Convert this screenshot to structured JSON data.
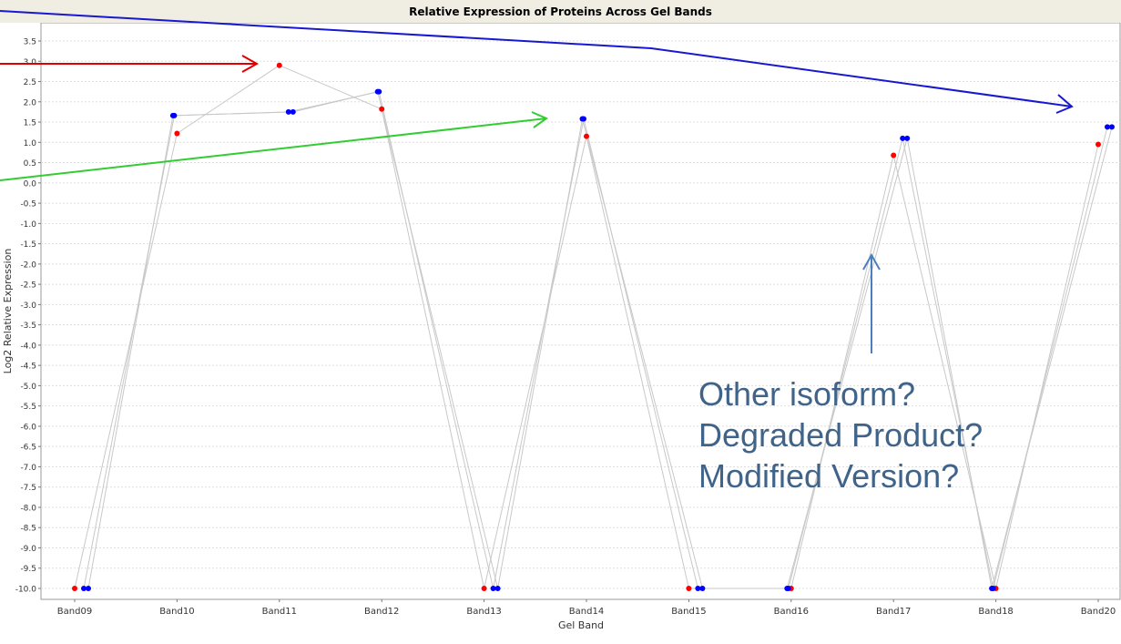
{
  "chart_data": {
    "type": "scatter",
    "title": "Relative Expression of Proteins Across Gel Bands",
    "xlabel": "Gel Band",
    "ylabel": "Log2 Relative Expression",
    "categories": [
      "Band09",
      "Band10",
      "Band11",
      "Band12",
      "Band13",
      "Band14",
      "Band15",
      "Band16",
      "Band17",
      "Band18",
      "Band20"
    ],
    "ylim": [
      -10.25,
      3.75
    ],
    "yticks": [
      "3.5",
      "3.0",
      "2.5",
      "2.0",
      "1.5",
      "1.0",
      "0.5",
      "0.0",
      "-0.5",
      "-1.0",
      "-1.5",
      "-2.0",
      "-2.5",
      "-3.0",
      "-3.5",
      "-4.0",
      "-4.5",
      "-5.0",
      "-5.5",
      "-6.0",
      "-6.5",
      "-7.0",
      "-7.5",
      "-8.0",
      "-8.5",
      "-9.0",
      "-9.5",
      "-10.0"
    ],
    "grid": true,
    "colors": {
      "red_points": "#ff0000",
      "blue_points": "#0000ff",
      "series_lines": "#c8c8c8"
    },
    "series": [
      {
        "color": "red",
        "x": [
          0.0,
          1.0,
          2.0,
          3.0,
          4.0,
          5.0,
          6.0,
          7.0,
          8.0,
          9.0,
          10.0
        ],
        "values": [
          -10.0,
          1.22,
          2.9,
          1.82,
          -10.0,
          1.15,
          -10.0,
          -10.0,
          0.68,
          -10.0,
          0.95
        ]
      },
      {
        "color": "blue",
        "x": [
          0.0,
          1.0,
          2.0,
          3.0,
          4.0,
          5.0,
          6.0,
          7.0,
          8.0,
          9.0,
          10.0
        ],
        "values": [
          -10.0,
          1.66,
          1.75,
          2.25,
          -10.0,
          1.58,
          -10.0,
          -10.0,
          1.1,
          -10.0,
          1.38
        ]
      },
      {
        "color": "blue",
        "x": [
          0.0,
          1.0,
          2.0,
          3.0,
          4.0,
          5.0,
          6.0,
          7.0,
          8.0,
          9.0,
          10.0
        ],
        "values": [
          -10.0,
          1.66,
          1.75,
          2.25,
          -10.0,
          1.58,
          -10.0,
          -10.0,
          1.1,
          -10.0,
          1.38
        ]
      }
    ],
    "annotation_arrows": [
      {
        "color": "#e00000",
        "points_to": "Band11 red point"
      },
      {
        "color": "#1818d0",
        "points_to": "Band20 blue points"
      },
      {
        "color": "#33cc33",
        "points_to": "Band14 blue point"
      },
      {
        "color": "#4a7fbf",
        "points_to": "Band17 red point"
      }
    ]
  },
  "annotation_text": {
    "line1": "Other isoform?",
    "line2": "Degraded Product?",
    "line3": "Modified Version?"
  }
}
